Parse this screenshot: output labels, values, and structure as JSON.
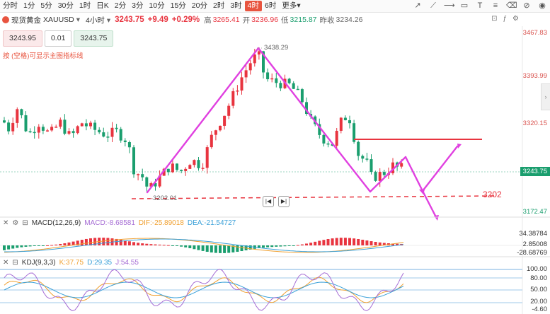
{
  "toolbar": {
    "timeframes": [
      "分时",
      "1分",
      "5分",
      "30分",
      "1时",
      "日K",
      "2分",
      "3分",
      "10分",
      "15分",
      "20分",
      "2时",
      "3时",
      "4时",
      "6时",
      "更多"
    ],
    "active": "4时",
    "more_suffix": "▾"
  },
  "info": {
    "name": "现货黄金",
    "code": "XAUUSD",
    "period": "4小时",
    "price": "3243.75",
    "change": "+9.49",
    "pct": "+0.29%",
    "high_label": "高",
    "high": "3265.41",
    "open_label": "开",
    "open": "3236.96",
    "low_label": "低",
    "low": "3215.87",
    "prev_label": "昨收",
    "prev": "3234.26"
  },
  "trade": {
    "sell": "3243.95",
    "qty": "0.01",
    "buy": "3243.75"
  },
  "hint": "按 (空格)可显示主图指标线",
  "main_axis": [
    "3467.83",
    "3393.99",
    "3320.15",
    "3243.75",
    "3172.47"
  ],
  "annotations": {
    "high": "3438.29",
    "low": "3202.01",
    "support": "3202"
  },
  "macd": {
    "title": "MACD(12,26,9)",
    "macd": "MACD:-8.68581",
    "dif": "DIF:-25.89018",
    "dea": "DEA:-21.54727",
    "axis": [
      "34.38784",
      "2.85008",
      "-28.68769"
    ]
  },
  "kdj": {
    "title": "KDJ(9,3,3)",
    "k": "K:37.75",
    "d": "D:29.35",
    "j": "J:54.55",
    "axis": [
      "100.00",
      "80.00",
      "50.00",
      "20.00",
      "-4.60"
    ]
  },
  "colors": {
    "up": "#e8343f",
    "down": "#1a9e6e",
    "purple": "#e040e0",
    "accent": "#e8543f"
  }
}
